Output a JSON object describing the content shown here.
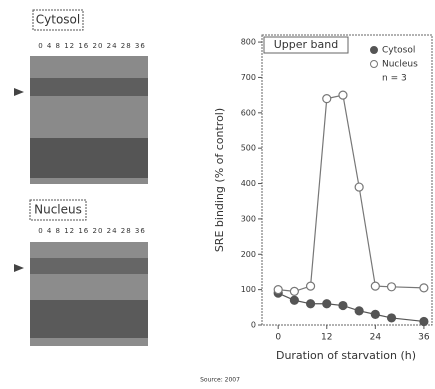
{
  "panels": [
    {
      "label": "Cytosol",
      "lanes": "0 4 8 12 16 20 24 28 36"
    },
    {
      "label": "Nucleus",
      "lanes": "0 4 8 12 16 20 24 28 36"
    }
  ],
  "chart_data": {
    "type": "line",
    "annotation": "Upper band",
    "xlabel": "Duration of starvation (h)",
    "ylabel": "SRE binding (% of control)",
    "x": [
      0,
      4,
      8,
      12,
      16,
      20,
      24,
      28,
      36
    ],
    "series": [
      {
        "name": "Cytosol",
        "color": "#555555",
        "filled": true,
        "values": [
          90,
          70,
          60,
          60,
          55,
          40,
          30,
          20,
          10
        ]
      },
      {
        "name": "Nucleus",
        "color": "#777777",
        "filled": false,
        "values": [
          100,
          95,
          110,
          640,
          650,
          390,
          110,
          108,
          105
        ]
      }
    ],
    "legend_note": "n = 3",
    "xlim": [
      -4,
      38
    ],
    "ylim": [
      0,
      820
    ],
    "xticks": [
      0,
      12,
      24,
      36
    ],
    "yticks": [
      0,
      100,
      200,
      300,
      400,
      500,
      600,
      700,
      800
    ]
  },
  "footer": "Source: 2007"
}
